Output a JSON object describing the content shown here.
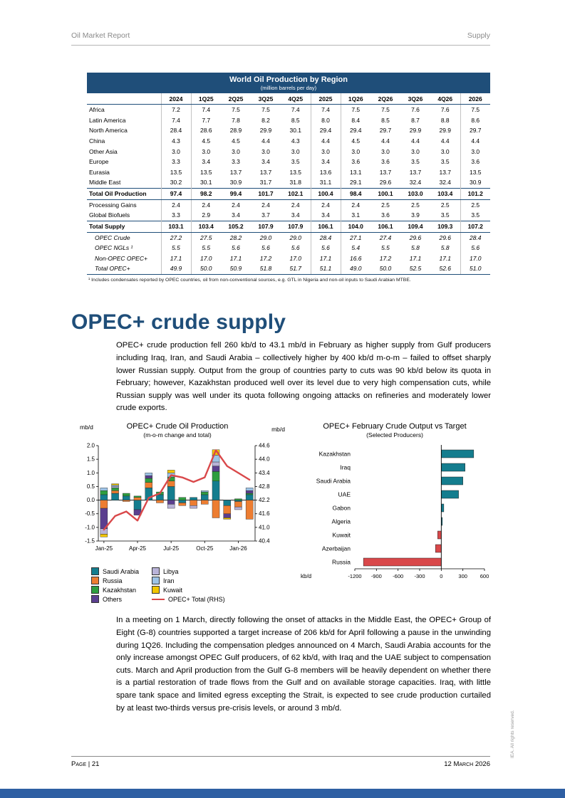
{
  "theme": {
    "accent": "#1f4e79",
    "bar": "#2e5fa3"
  },
  "page": {
    "header_left": "Oil Market Report",
    "header_right": "Supply",
    "footer_left": "Page | 21",
    "footer_right": "12 March 2026",
    "side_note": "IEA. All rights reserved."
  },
  "table": {
    "title": "World Oil Production by Region",
    "subtitle": "(million barrels per day)",
    "columns": [
      "2024",
      "1Q25",
      "2Q25",
      "3Q25",
      "4Q25",
      "2025",
      "1Q26",
      "2Q26",
      "3Q26",
      "4Q26",
      "2026"
    ],
    "rows": [
      {
        "label": "Africa",
        "style": "plain",
        "values": [
          "7.2",
          "7.4",
          "7.5",
          "7.5",
          "7.4",
          "7.4",
          "7.5",
          "7.5",
          "7.6",
          "7.6",
          "7.5"
        ]
      },
      {
        "label": "Latin America",
        "style": "plain",
        "values": [
          "7.4",
          "7.7",
          "7.8",
          "8.2",
          "8.5",
          "8.0",
          "8.4",
          "8.5",
          "8.7",
          "8.8",
          "8.6"
        ]
      },
      {
        "label": "North America",
        "style": "plain",
        "values": [
          "28.4",
          "28.6",
          "28.9",
          "29.9",
          "30.1",
          "29.4",
          "29.4",
          "29.7",
          "29.9",
          "29.9",
          "29.7"
        ]
      },
      {
        "label": "China",
        "style": "plain",
        "values": [
          "4.3",
          "4.5",
          "4.5",
          "4.4",
          "4.3",
          "4.4",
          "4.5",
          "4.4",
          "4.4",
          "4.4",
          "4.4"
        ]
      },
      {
        "label": "Other Asia",
        "style": "plain",
        "values": [
          "3.0",
          "3.0",
          "3.0",
          "3.0",
          "3.0",
          "3.0",
          "3.0",
          "3.0",
          "3.0",
          "3.0",
          "3.0"
        ]
      },
      {
        "label": "Europe",
        "style": "plain",
        "values": [
          "3.3",
          "3.4",
          "3.3",
          "3.4",
          "3.5",
          "3.4",
          "3.6",
          "3.6",
          "3.5",
          "3.5",
          "3.6"
        ]
      },
      {
        "label": "Eurasia",
        "style": "plain",
        "values": [
          "13.5",
          "13.5",
          "13.7",
          "13.7",
          "13.5",
          "13.6",
          "13.1",
          "13.7",
          "13.7",
          "13.7",
          "13.5"
        ]
      },
      {
        "label": "Middle East",
        "style": "plain",
        "values": [
          "30.2",
          "30.1",
          "30.9",
          "31.7",
          "31.8",
          "31.1",
          "29.1",
          "29.6",
          "32.4",
          "32.4",
          "30.9"
        ]
      },
      {
        "label": "Total Oil Production",
        "style": "bold",
        "values": [
          "97.4",
          "98.2",
          "99.4",
          "101.7",
          "102.1",
          "100.4",
          "98.4",
          "100.1",
          "103.0",
          "103.4",
          "101.2"
        ]
      },
      {
        "label": "Processing Gains",
        "style": "plain",
        "values": [
          "2.4",
          "2.4",
          "2.4",
          "2.4",
          "2.4",
          "2.4",
          "2.4",
          "2.5",
          "2.5",
          "2.5",
          "2.5"
        ]
      },
      {
        "label": "Global Biofuels",
        "style": "plain",
        "values": [
          "3.3",
          "2.9",
          "3.4",
          "3.7",
          "3.4",
          "3.4",
          "3.1",
          "3.6",
          "3.9",
          "3.5",
          "3.5"
        ]
      },
      {
        "label": "Total Supply",
        "style": "bold",
        "values": [
          "103.1",
          "103.4",
          "105.2",
          "107.9",
          "107.9",
          "106.1",
          "104.0",
          "106.1",
          "109.4",
          "109.3",
          "107.2"
        ]
      },
      {
        "label": "OPEC Crude",
        "style": "italic",
        "values": [
          "27.2",
          "27.5",
          "28.2",
          "29.0",
          "29.0",
          "28.4",
          "27.1",
          "27.4",
          "29.6",
          "29.6",
          "28.4"
        ]
      },
      {
        "label": "OPEC NGLs ¹",
        "style": "italic",
        "values": [
          "5.5",
          "5.5",
          "5.6",
          "5.6",
          "5.6",
          "5.6",
          "5.4",
          "5.5",
          "5.8",
          "5.8",
          "5.6"
        ]
      },
      {
        "label": "Non-OPEC OPEC+",
        "style": "italic",
        "values": [
          "17.1",
          "17.0",
          "17.1",
          "17.2",
          "17.0",
          "17.1",
          "16.6",
          "17.2",
          "17.1",
          "17.1",
          "17.0"
        ]
      },
      {
        "label": "Total OPEC+",
        "style": "italic",
        "values": [
          "49.9",
          "50.0",
          "50.9",
          "51.8",
          "51.7",
          "51.1",
          "49.0",
          "50.0",
          "52.5",
          "52.6",
          "51.0"
        ]
      }
    ],
    "footnote": "¹ Includes condensates reported by OPEC countries, oil from non-conventional sources, e.g. GTL in Nigeria and non-oil inputs to Saudi Arabian MTBE."
  },
  "article": {
    "heading": "OPEC+ crude supply",
    "paragraph1": "OPEC+ crude production fell 260 kb/d to 43.1 mb/d in February as higher supply from Gulf producers including Iraq, Iran, and Saudi Arabia – collectively higher by 400 kb/d m-o-m – failed to offset sharply lower Russian supply. Output from the group of countries party to cuts was 90 kb/d below its quota in February; however, Kazakhstan produced well over its level due to very high compensation cuts, while Russian supply was well under its quota following ongoing attacks on refineries and moderately lower crude exports.",
    "paragraph2": "In a meeting on 1 March, directly following the onset of attacks in the Middle East, the OPEC+ Group of Eight (G-8) countries supported a target increase of 206 kb/d for April following a pause in the unwinding during 1Q26. Including the compensation pledges announced on 4 March, Saudi Arabia accounts for the only increase amongst OPEC Gulf producers, of 62 kb/d, with Iraq and the UAE subject to compensation cuts. March and April production from the Gulf G-8 members will be heavily dependent on whether there is a partial restoration of trade flows from the Gulf and on available storage capacities. Iraq, with little spare tank space and limited egress excepting the Strait, is expected to see crude production curtailed by at least two-thirds versus pre-crisis levels, or around 3 mb/d."
  },
  "chart_data": [
    {
      "type": "bar",
      "subtype": "stacked-with-line",
      "title": "OPEC+ Crude Oil Production",
      "subtitle": "(m-o-m change and total)",
      "ylabel_left": "mb/d",
      "ylabel_right": "mb/d",
      "x": [
        "Jan-25",
        "Feb-25",
        "Mar-25",
        "Apr-25",
        "May-25",
        "Jun-25",
        "Jul-25",
        "Aug-25",
        "Sep-25",
        "Oct-25",
        "Nov-25",
        "Dec-25",
        "Jan-26",
        "Feb-26"
      ],
      "x_tick_labels": [
        "Jan-25",
        "Apr-25",
        "Jul-25",
        "Oct-25",
        "Jan-26"
      ],
      "ylim_left": [
        -1.5,
        2.0
      ],
      "ylim_right": [
        40.4,
        44.6
      ],
      "yticks_left": [
        2.0,
        1.5,
        1.0,
        0.5,
        0.0,
        -0.5,
        -1.0,
        -1.5
      ],
      "yticks_right": [
        44.6,
        44.0,
        43.4,
        42.8,
        42.2,
        41.6,
        41.0,
        40.4
      ],
      "grid": false,
      "legend_position": "bottom",
      "series": [
        {
          "name": "Saudi Arabia",
          "color": "#147d8e",
          "values": [
            0.2,
            0.25,
            0.15,
            -0.35,
            0.45,
            0.2,
            0.5,
            -0.1,
            0.1,
            0.2,
            0.7,
            -0.2,
            -0.05,
            0.2
          ]
        },
        {
          "name": "Russia",
          "color": "#ed7d31",
          "values": [
            -0.3,
            0.1,
            -0.05,
            0.1,
            0.2,
            -0.1,
            0.2,
            -0.1,
            -0.2,
            -0.15,
            -0.65,
            -0.3,
            -0.2,
            -0.7
          ]
        },
        {
          "name": "Kazakhstan",
          "color": "#2e9e3f",
          "values": [
            0.15,
            0.1,
            0.1,
            0.05,
            0.15,
            0.1,
            0.15,
            0.1,
            0,
            0.1,
            0.35,
            0,
            0.05,
            0.05
          ]
        },
        {
          "name": "Others",
          "color": "#5b3f8f",
          "values": [
            -0.75,
            0,
            0,
            -0.2,
            0.1,
            0,
            -0.15,
            0,
            0,
            0,
            0.2,
            -0.15,
            0,
            0.1
          ]
        },
        {
          "name": "Libya",
          "color": "#b9b3d8",
          "values": [
            -0.2,
            0.05,
            0,
            0,
            0,
            0,
            -0.15,
            0,
            -0.1,
            0,
            0.15,
            0,
            -0.1,
            0
          ]
        },
        {
          "name": "Iran",
          "color": "#9dc3e6",
          "values": [
            0.1,
            0.05,
            0,
            0,
            0.1,
            0,
            0.15,
            0,
            0,
            0.05,
            0.25,
            0,
            0,
            0.1
          ]
        },
        {
          "name": "Kuwait",
          "color": "#f2c500",
          "values": [
            -0.1,
            0.05,
            0,
            0,
            0,
            0,
            0.1,
            0,
            0,
            0,
            0.2,
            -0.05,
            0,
            0
          ]
        }
      ],
      "line": {
        "name": "OPEC+ Total (RHS)",
        "color": "#d9484a",
        "axis": "right",
        "values": [
          40.9,
          41.5,
          41.7,
          41.3,
          42.3,
          42.5,
          43.3,
          43.2,
          43.0,
          43.2,
          44.4,
          43.7,
          43.4,
          43.1
        ]
      }
    },
    {
      "type": "bar",
      "orientation": "horizontal",
      "title": "OPEC+ February Crude Output vs Target",
      "subtitle": "(Selected Producers)",
      "xlabel": "kb/d",
      "categories": [
        "Kazakhstan",
        "Iraq",
        "Saudi Arabia",
        "UAE",
        "Gabon",
        "Algeria",
        "Kuwait",
        "Azerbaijan",
        "Russia"
      ],
      "values": [
        450,
        330,
        300,
        240,
        35,
        15,
        -50,
        -80,
        -1080
      ],
      "xlim": [
        -1200,
        600
      ],
      "xticks": [
        -1200,
        -900,
        -600,
        -300,
        0,
        300,
        600
      ],
      "grid": false,
      "positive_color": "#147d8e",
      "negative_color": "#d9484a"
    }
  ]
}
